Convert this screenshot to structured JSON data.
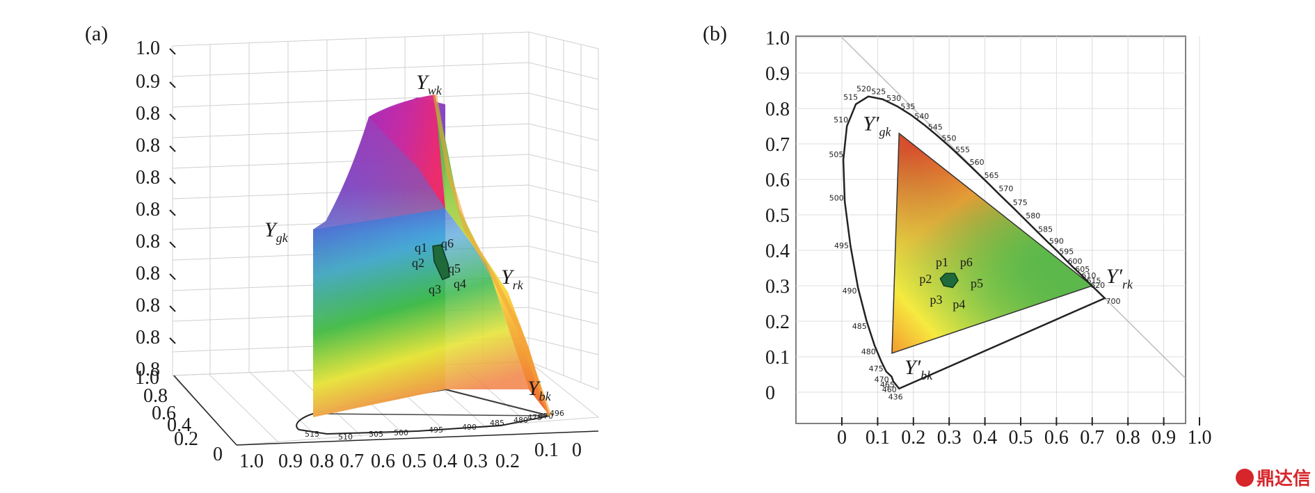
{
  "panels": {
    "a": {
      "label": "(a)",
      "z_ticks": [
        "1.0",
        "0.9",
        "0.8",
        "0.8",
        "0.8",
        "0.8",
        "0.8",
        "0.8",
        "0.8",
        "0.8",
        "0.8",
        "0"
      ],
      "left_axis_ticks": [
        "1.0",
        "0.8",
        "0.6",
        "0.4",
        "0.2",
        "0"
      ],
      "bottom_axis_ticks": [
        "1.0",
        "0.9",
        "0.8",
        "0.7",
        "0.6",
        "0.5",
        "0.4",
        "0.3",
        "0.2",
        "0.1",
        "0"
      ],
      "locus_wavelengths": [
        "515",
        "510",
        "505",
        "500",
        "495",
        "490",
        "485",
        "480",
        "475",
        "470",
        "496"
      ],
      "vertices": {
        "wk": {
          "base": "Y",
          "sub": "wk"
        },
        "gk": {
          "base": "Y",
          "sub": "gk"
        },
        "rk": {
          "base": "Y",
          "sub": "rk"
        },
        "bk": {
          "base": "Y",
          "sub": "bk"
        }
      },
      "points": [
        "q1",
        "q2",
        "q3",
        "q4",
        "q5",
        "q6"
      ]
    },
    "b": {
      "label": "(b)",
      "y_ticks": [
        "1.0",
        "0.9",
        "0.8",
        "0.7",
        "0.6",
        "0.5",
        "0.4",
        "0.3",
        "0.2",
        "0.1",
        "0"
      ],
      "x_ticks": [
        "0",
        "0.1",
        "0.2",
        "0.3",
        "0.4",
        "0.5",
        "0.6",
        "0.7",
        "0.8",
        "0.9",
        "1.0"
      ],
      "locus_wavelengths": [
        {
          "nm": "436",
          "x": 0.16,
          "y": 0.01
        },
        {
          "nm": "460",
          "x": 0.144,
          "y": 0.03
        },
        {
          "nm": "465",
          "x": 0.139,
          "y": 0.044
        },
        {
          "nm": "470",
          "x": 0.124,
          "y": 0.058
        },
        {
          "nm": "475",
          "x": 0.11,
          "y": 0.087
        },
        {
          "nm": "480",
          "x": 0.091,
          "y": 0.133
        },
        {
          "nm": "485",
          "x": 0.069,
          "y": 0.201
        },
        {
          "nm": "490",
          "x": 0.045,
          "y": 0.295
        },
        {
          "nm": "495",
          "x": 0.024,
          "y": 0.413
        },
        {
          "nm": "500",
          "x": 0.008,
          "y": 0.538
        },
        {
          "nm": "505",
          "x": 0.004,
          "y": 0.655
        },
        {
          "nm": "510",
          "x": 0.014,
          "y": 0.75
        },
        {
          "nm": "515",
          "x": 0.039,
          "y": 0.812
        },
        {
          "nm": "520",
          "x": 0.074,
          "y": 0.834
        },
        {
          "nm": "525",
          "x": 0.114,
          "y": 0.826
        },
        {
          "nm": "530",
          "x": 0.155,
          "y": 0.806
        },
        {
          "nm": "535",
          "x": 0.193,
          "y": 0.782
        },
        {
          "nm": "540",
          "x": 0.23,
          "y": 0.754
        },
        {
          "nm": "545",
          "x": 0.266,
          "y": 0.724
        },
        {
          "nm": "550",
          "x": 0.302,
          "y": 0.692
        },
        {
          "nm": "555",
          "x": 0.337,
          "y": 0.659
        },
        {
          "nm": "560",
          "x": 0.373,
          "y": 0.624
        },
        {
          "nm": "565",
          "x": 0.409,
          "y": 0.589
        },
        {
          "nm": "570",
          "x": 0.444,
          "y": 0.554
        },
        {
          "nm": "575",
          "x": 0.479,
          "y": 0.52
        },
        {
          "nm": "580",
          "x": 0.512,
          "y": 0.487
        },
        {
          "nm": "585",
          "x": 0.545,
          "y": 0.454
        },
        {
          "nm": "590",
          "x": 0.575,
          "y": 0.424
        },
        {
          "nm": "595",
          "x": 0.603,
          "y": 0.397
        },
        {
          "nm": "600",
          "x": 0.627,
          "y": 0.372
        },
        {
          "nm": "605",
          "x": 0.648,
          "y": 0.351
        },
        {
          "nm": "610",
          "x": 0.666,
          "y": 0.334
        },
        {
          "nm": "615",
          "x": 0.68,
          "y": 0.32
        },
        {
          "nm": "620",
          "x": 0.691,
          "y": 0.308
        },
        {
          "nm": "700",
          "x": 0.735,
          "y": 0.265
        }
      ],
      "triangle": {
        "gk": {
          "x": 0.16,
          "y": 0.73
        },
        "rk": {
          "x": 0.7,
          "y": 0.3
        },
        "bk": {
          "x": 0.14,
          "y": 0.11
        }
      },
      "vertices": {
        "gk": {
          "base": "Y",
          "prime": "′",
          "sub": "gk"
        },
        "rk": {
          "base": "Y",
          "prime": "′",
          "sub": "rk"
        },
        "bk": {
          "base": "Y",
          "prime": "′",
          "sub": "bk"
        }
      },
      "points": [
        {
          "label": "p1",
          "x": 0.29,
          "y": 0.335
        },
        {
          "label": "p2",
          "x": 0.275,
          "y": 0.32
        },
        {
          "label": "p3",
          "x": 0.285,
          "y": 0.3
        },
        {
          "label": "p4",
          "x": 0.31,
          "y": 0.295
        },
        {
          "label": "p5",
          "x": 0.325,
          "y": 0.315
        },
        {
          "label": "p6",
          "x": 0.315,
          "y": 0.335
        }
      ]
    }
  },
  "watermark": {
    "text": "鼎达信"
  },
  "colors": {
    "red": "#e8322a",
    "green": "#3aa846",
    "blue": "#2e5bd6",
    "yellow": "#f2e23a",
    "magenta": "#e8246e"
  }
}
